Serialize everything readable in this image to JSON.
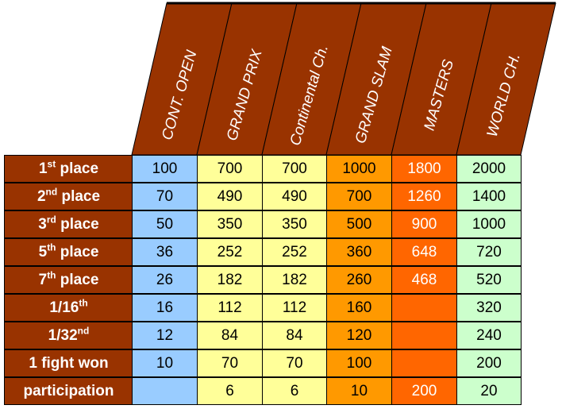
{
  "columns": [
    {
      "label": "CONT. OPEN",
      "color": "#99ccff"
    },
    {
      "label": "GRAND PRIX",
      "color": "#ffff99"
    },
    {
      "label": "Continental Ch.",
      "color": "#ffff99"
    },
    {
      "label": "GRAND SLAM",
      "color": "#ff9900"
    },
    {
      "label": "MASTERS",
      "color": "#ff6600"
    },
    {
      "label": "WORLD CH.",
      "color": "#ccffcc"
    }
  ],
  "header_color": "#993300",
  "rows": [
    {
      "num": "1",
      "sup": "st",
      "suffix": " place",
      "values": [
        "100",
        "700",
        "700",
        "1000",
        "1800",
        "2000"
      ]
    },
    {
      "num": "2",
      "sup": "nd",
      "suffix": " place",
      "values": [
        "70",
        "490",
        "490",
        "700",
        "1260",
        "1400"
      ]
    },
    {
      "num": "3",
      "sup": "rd",
      "suffix": " place",
      "values": [
        "50",
        "350",
        "350",
        "500",
        "900",
        "1000"
      ]
    },
    {
      "num": "5",
      "sup": "th",
      "suffix": " place",
      "values": [
        "36",
        "252",
        "252",
        "360",
        "648",
        "720"
      ]
    },
    {
      "num": "7",
      "sup": "th",
      "suffix": " place",
      "values": [
        "26",
        "182",
        "182",
        "260",
        "468",
        "520"
      ]
    },
    {
      "num": "1/16",
      "sup": "th",
      "suffix": "",
      "values": [
        "16",
        "112",
        "112",
        "160",
        "",
        "320"
      ]
    },
    {
      "num": "1/32",
      "sup": "nd",
      "suffix": "",
      "values": [
        "12",
        "84",
        "84",
        "120",
        "",
        "240"
      ]
    },
    {
      "num": "1 fight won",
      "sup": "",
      "suffix": "",
      "values": [
        "10",
        "70",
        "70",
        "100",
        "",
        "200"
      ]
    },
    {
      "num": "participation",
      "sup": "",
      "suffix": "",
      "values": [
        "",
        "6",
        "6",
        "10",
        "200",
        "20"
      ]
    }
  ]
}
